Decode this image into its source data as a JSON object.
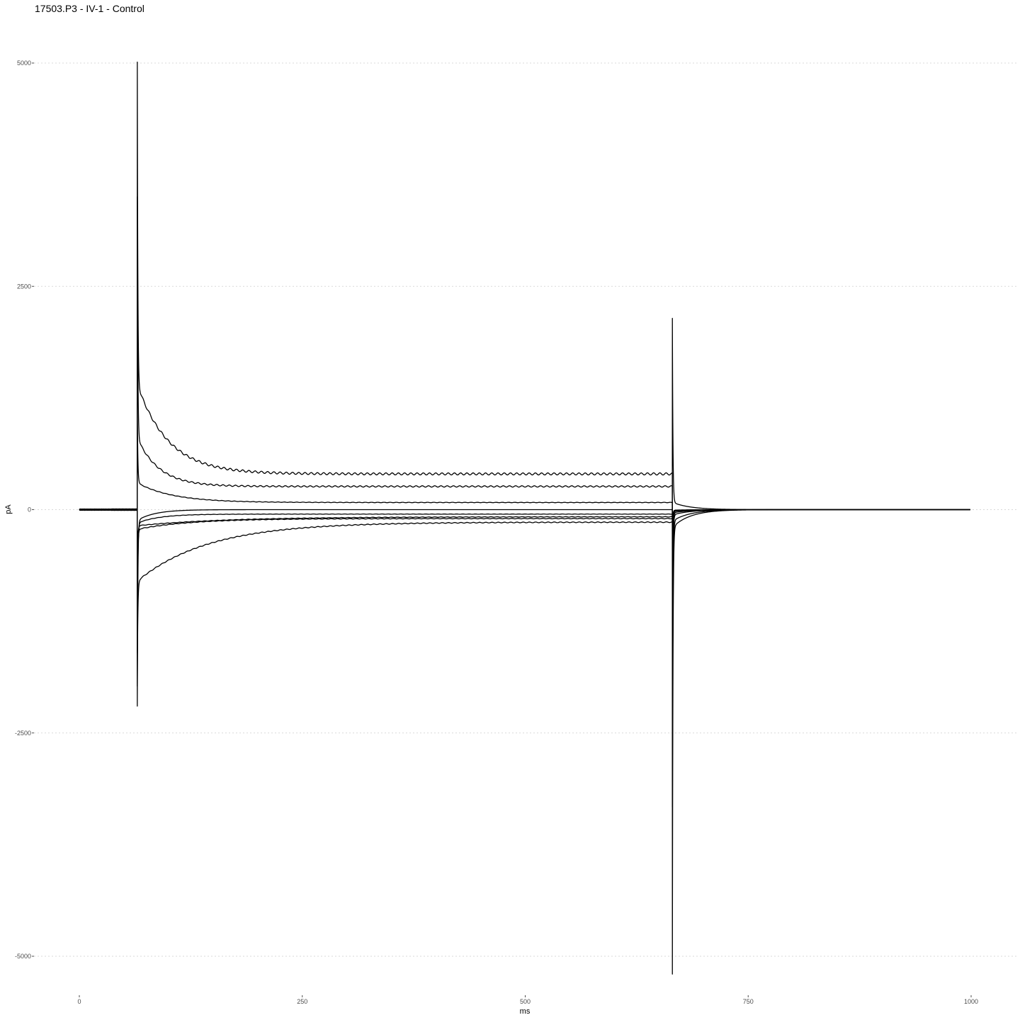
{
  "chart_data": {
    "type": "line",
    "title": "17503.P3 - IV-1 - Control",
    "xlabel": "ms",
    "ylabel": "pA",
    "xlim": [
      0,
      1000
    ],
    "ylim": [
      -5000,
      5000
    ],
    "x_ticks": [
      0,
      250,
      500,
      750,
      1000
    ],
    "y_ticks": [
      -5000,
      -2500,
      0,
      2500,
      5000
    ],
    "grid": "horizontal dotted",
    "legend": "none",
    "line_color": "#000000",
    "step_on_ms": 65,
    "step_off_ms": 665,
    "series": [
      {
        "on_peak": 5000,
        "early_pA": 1400,
        "steady_pA": 400,
        "tau_ms": 35,
        "off_peak": -5000
      },
      {
        "on_peak": 3500,
        "early_pA": 800,
        "steady_pA": 260,
        "tau_ms": 25,
        "off_peak": -3200
      },
      {
        "on_peak": 1200,
        "early_pA": 300,
        "steady_pA": 80,
        "tau_ms": 40,
        "off_peak": -1500
      },
      {
        "on_peak": -2200,
        "early_pA": -120,
        "steady_pA": 0,
        "tau_ms": 20,
        "off_peak": -900
      },
      {
        "on_peak": -1600,
        "early_pA": -150,
        "steady_pA": -50,
        "tau_ms": 25,
        "off_peak": -500
      },
      {
        "on_peak": -1000,
        "early_pA": -220,
        "steady_pA": -100,
        "tau_ms": 60,
        "off_peak": -250
      },
      {
        "on_peak": -1980,
        "early_pA": -800,
        "steady_pA": -140,
        "tau_ms": 80,
        "off_peak": 2060
      },
      {
        "on_peak": -600,
        "early_pA": -180,
        "steady_pA": -80,
        "tau_ms": 100,
        "off_peak": -150
      }
    ]
  }
}
